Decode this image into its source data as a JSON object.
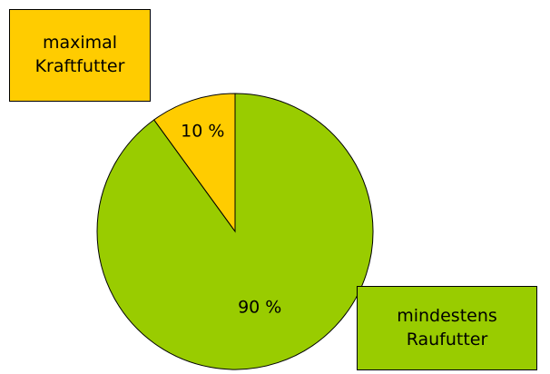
{
  "chart_data": {
    "type": "pie",
    "categories": [
      "maximal Kraftfutter",
      "mindestens Raufutter"
    ],
    "values": [
      10,
      90
    ],
    "value_labels": [
      "10 %",
      "90 %"
    ],
    "colors": [
      "#ffcc00",
      "#99cc00"
    ]
  }
}
